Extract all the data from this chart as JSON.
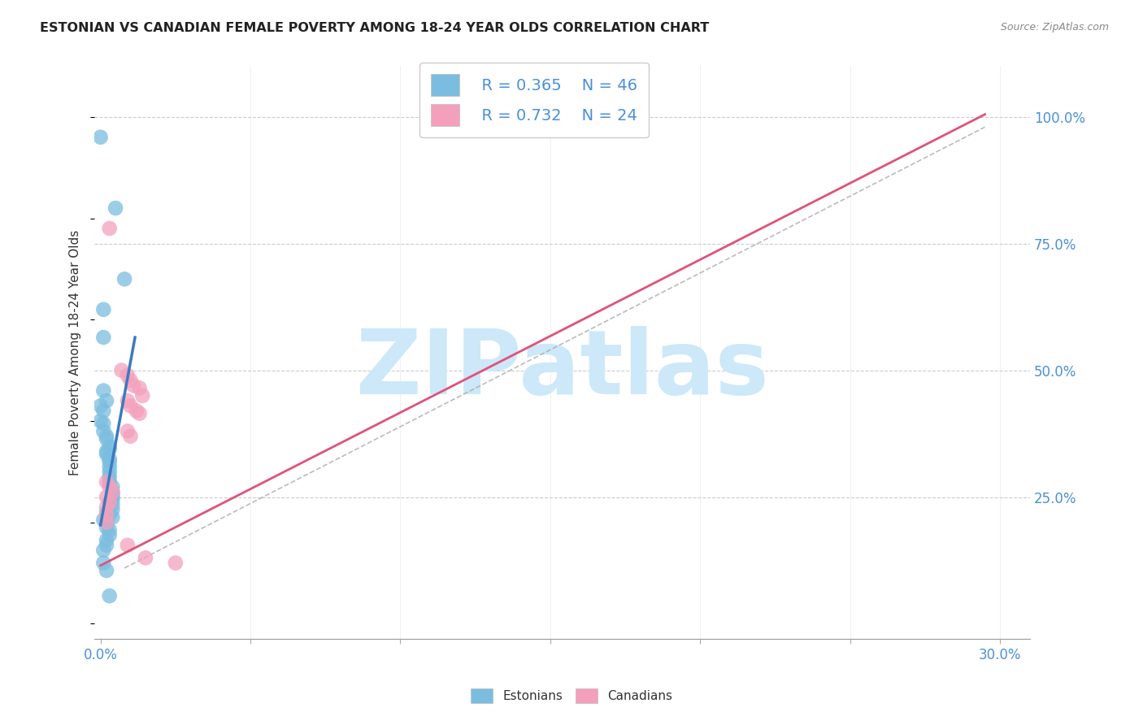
{
  "title": "ESTONIAN VS CANADIAN FEMALE POVERTY AMONG 18-24 YEAR OLDS CORRELATION CHART",
  "source": "Source: ZipAtlas.com",
  "ylabel": "Female Poverty Among 18-24 Year Olds",
  "ytick_positions": [
    0.0,
    0.25,
    0.5,
    0.75,
    1.0
  ],
  "ytick_labels": [
    "",
    "25.0%",
    "50.0%",
    "75.0%",
    "100.0%"
  ],
  "xtick_positions": [
    0.0,
    0.05,
    0.1,
    0.15,
    0.2,
    0.25,
    0.3
  ],
  "xtick_labels": [
    "0.0%",
    "",
    "",
    "",
    "",
    "",
    "30.0%"
  ],
  "legend_r1": "R = 0.365",
  "legend_n1": "N = 46",
  "legend_r2": "R = 0.732",
  "legend_n2": "N = 24",
  "legend_label1": "Estonians",
  "legend_label2": "Canadians",
  "blue_color": "#7bbde0",
  "pink_color": "#f4a0bc",
  "blue_line_color": "#3a7bbf",
  "pink_line_color": "#e0527a",
  "blue_scatter": [
    [
      0.0,
      0.96
    ],
    [
      0.005,
      0.82
    ],
    [
      0.008,
      0.68
    ],
    [
      0.001,
      0.62
    ],
    [
      0.001,
      0.565
    ],
    [
      0.001,
      0.46
    ],
    [
      0.002,
      0.44
    ],
    [
      0.0,
      0.43
    ],
    [
      0.001,
      0.42
    ],
    [
      0.0,
      0.4
    ],
    [
      0.001,
      0.395
    ],
    [
      0.001,
      0.38
    ],
    [
      0.002,
      0.37
    ],
    [
      0.002,
      0.365
    ],
    [
      0.003,
      0.35
    ],
    [
      0.003,
      0.345
    ],
    [
      0.002,
      0.34
    ],
    [
      0.002,
      0.335
    ],
    [
      0.003,
      0.325
    ],
    [
      0.003,
      0.32
    ],
    [
      0.003,
      0.31
    ],
    [
      0.003,
      0.3
    ],
    [
      0.003,
      0.29
    ],
    [
      0.003,
      0.28
    ],
    [
      0.004,
      0.27
    ],
    [
      0.004,
      0.26
    ],
    [
      0.004,
      0.255
    ],
    [
      0.004,
      0.25
    ],
    [
      0.004,
      0.245
    ],
    [
      0.003,
      0.24
    ],
    [
      0.004,
      0.235
    ],
    [
      0.004,
      0.225
    ],
    [
      0.002,
      0.22
    ],
    [
      0.003,
      0.215
    ],
    [
      0.004,
      0.21
    ],
    [
      0.001,
      0.205
    ],
    [
      0.002,
      0.2
    ],
    [
      0.002,
      0.19
    ],
    [
      0.003,
      0.185
    ],
    [
      0.003,
      0.175
    ],
    [
      0.002,
      0.165
    ],
    [
      0.002,
      0.155
    ],
    [
      0.001,
      0.145
    ],
    [
      0.001,
      0.12
    ],
    [
      0.002,
      0.105
    ],
    [
      0.003,
      0.055
    ]
  ],
  "pink_scatter": [
    [
      0.003,
      0.78
    ],
    [
      0.007,
      0.5
    ],
    [
      0.009,
      0.49
    ],
    [
      0.01,
      0.48
    ],
    [
      0.011,
      0.47
    ],
    [
      0.013,
      0.465
    ],
    [
      0.014,
      0.45
    ],
    [
      0.009,
      0.44
    ],
    [
      0.01,
      0.43
    ],
    [
      0.012,
      0.42
    ],
    [
      0.013,
      0.415
    ],
    [
      0.009,
      0.38
    ],
    [
      0.01,
      0.37
    ],
    [
      0.002,
      0.28
    ],
    [
      0.003,
      0.27
    ],
    [
      0.004,
      0.26
    ],
    [
      0.002,
      0.25
    ],
    [
      0.003,
      0.24
    ],
    [
      0.002,
      0.23
    ],
    [
      0.002,
      0.215
    ],
    [
      0.002,
      0.2
    ],
    [
      0.009,
      0.155
    ],
    [
      0.015,
      0.13
    ],
    [
      0.025,
      0.12
    ]
  ],
  "blue_line": [
    [
      0.0,
      0.195
    ],
    [
      0.0115,
      0.565
    ]
  ],
  "pink_line": [
    [
      0.0,
      0.115
    ],
    [
      0.295,
      1.005
    ]
  ],
  "gray_line": [
    [
      0.008,
      0.11
    ],
    [
      0.295,
      0.98
    ]
  ],
  "xlim": [
    -0.002,
    0.31
  ],
  "ylim": [
    -0.03,
    1.1
  ],
  "watermark": "ZIPatlas",
  "watermark_color": "#cde8f8",
  "title_color": "#222222",
  "axis_label_color": "#4a90d9",
  "grid_color": "#cccccc",
  "source_color": "#888888"
}
